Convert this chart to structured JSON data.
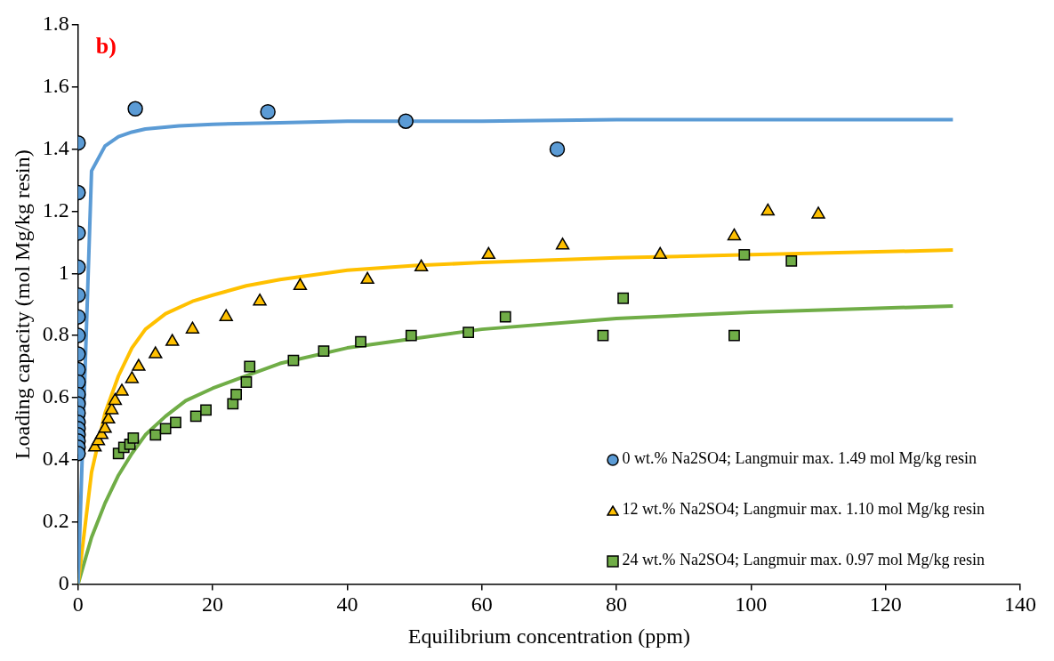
{
  "chart_data": {
    "type": "scatter",
    "title": "b)",
    "xlabel": "Equilibrium concentration (ppm)",
    "ylabel": "Loading capacity (mol Mg/kg resin)",
    "xlim": [
      0,
      140
    ],
    "xticks": [
      0,
      20,
      40,
      60,
      80,
      100,
      120,
      140
    ],
    "ylim": [
      0,
      1.8
    ],
    "yticks": [
      0,
      0.2,
      0.4,
      0.6,
      0.8,
      1,
      1.2,
      1.4,
      1.6,
      1.8
    ],
    "grid": false,
    "legend": "bottom right",
    "series": [
      {
        "name": "0 wt.% Na2SO4; Langmuir max. 1.49 mol Mg/kg resin",
        "type": "scatter",
        "marker": "circle",
        "color": "#5b9bd5",
        "x": [
          0,
          0,
          0,
          0,
          0,
          0,
          0,
          0,
          0,
          0,
          0,
          0,
          0,
          0,
          0,
          0,
          0,
          0,
          0,
          8.5,
          28.2,
          48.7,
          71.2
        ],
        "values": [
          1.42,
          1.26,
          1.13,
          1.02,
          0.93,
          0.86,
          0.8,
          0.74,
          0.69,
          0.65,
          0.61,
          0.58,
          0.55,
          0.52,
          0.5,
          0.48,
          0.46,
          0.44,
          0.42,
          1.53,
          1.52,
          1.49,
          1.4
        ]
      },
      {
        "name": "12 wt.% Na2SO4; Langmuir max. 1.10 mol Mg/kg resin",
        "type": "scatter",
        "marker": "triangle",
        "color": "#ffc000",
        "x": [
          2.5,
          3,
          3.5,
          4,
          4.5,
          5,
          5.5,
          6.5,
          8,
          9,
          11.5,
          14,
          17,
          22,
          27,
          33,
          43,
          51,
          61,
          72,
          86.5,
          97.5,
          102.5,
          110
        ],
        "values": [
          0.44,
          0.46,
          0.48,
          0.5,
          0.53,
          0.56,
          0.59,
          0.62,
          0.66,
          0.7,
          0.74,
          0.78,
          0.82,
          0.86,
          0.91,
          0.96,
          0.98,
          1.02,
          1.06,
          1.09,
          1.06,
          1.12,
          1.2,
          1.19
        ]
      },
      {
        "name": "24 wt.% Na2SO4; Langmuir max. 0.97 mol Mg/kg resin",
        "type": "scatter",
        "marker": "square",
        "color": "#70ad47",
        "x": [
          6,
          6.8,
          7.7,
          8.2,
          11.5,
          13,
          14.5,
          17.5,
          19,
          23,
          23.5,
          25,
          25.5,
          32,
          36.5,
          42,
          49.5,
          58,
          63.5,
          78,
          81,
          97.5,
          99,
          106
        ],
        "values": [
          0.42,
          0.44,
          0.45,
          0.47,
          0.48,
          0.5,
          0.52,
          0.54,
          0.56,
          0.58,
          0.61,
          0.65,
          0.7,
          0.72,
          0.75,
          0.78,
          0.8,
          0.81,
          0.86,
          0.8,
          0.92,
          0.8,
          1.06,
          1.04
        ]
      },
      {
        "type": "line",
        "marker": "none",
        "color": "#5b9bd5",
        "x": [
          0,
          2,
          4,
          6,
          8,
          10,
          15,
          20,
          30,
          40,
          60,
          80,
          100,
          130
        ],
        "values": [
          0,
          1.33,
          1.41,
          1.44,
          1.455,
          1.465,
          1.475,
          1.48,
          1.485,
          1.49,
          1.49,
          1.495,
          1.495,
          1.495
        ]
      },
      {
        "type": "line",
        "marker": "none",
        "color": "#ffc000",
        "x": [
          0,
          2,
          4,
          6,
          8,
          10,
          13,
          17,
          20,
          25,
          30,
          40,
          50,
          60,
          80,
          100,
          130
        ],
        "values": [
          0,
          0.36,
          0.55,
          0.67,
          0.76,
          0.82,
          0.87,
          0.91,
          0.93,
          0.96,
          0.98,
          1.01,
          1.025,
          1.035,
          1.05,
          1.06,
          1.075
        ]
      },
      {
        "type": "line",
        "marker": "none",
        "color": "#70ad47",
        "x": [
          0,
          2,
          4,
          6,
          8,
          10,
          13,
          16,
          20,
          25,
          30,
          40,
          50,
          60,
          80,
          100,
          130
        ],
        "values": [
          0,
          0.15,
          0.26,
          0.35,
          0.42,
          0.48,
          0.54,
          0.59,
          0.63,
          0.67,
          0.71,
          0.76,
          0.79,
          0.82,
          0.855,
          0.875,
          0.895
        ]
      }
    ]
  }
}
